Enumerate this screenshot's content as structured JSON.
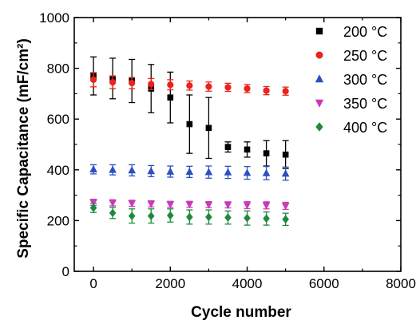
{
  "chart_data": {
    "type": "scatter",
    "xlabel": "Cycle number",
    "ylabel": "Specific Capacitance (mF/cm²)",
    "xlim": [
      -500,
      8000
    ],
    "ylim": [
      0,
      1000
    ],
    "xticks": [
      0,
      2000,
      4000,
      6000,
      8000
    ],
    "yticks": [
      0,
      200,
      400,
      600,
      800,
      1000
    ],
    "error_bars": true,
    "legend_position": "top-right",
    "series": [
      {
        "name": "200 °C",
        "marker": "square",
        "color": "#000000",
        "x": [
          0,
          500,
          1000,
          1500,
          2000,
          2500,
          3000,
          3500,
          4000,
          4500,
          5000
        ],
        "y": [
          770,
          760,
          750,
          720,
          685,
          580,
          565,
          490,
          480,
          465,
          460
        ],
        "err": [
          75,
          80,
          85,
          95,
          100,
          115,
          120,
          20,
          30,
          50,
          55
        ]
      },
      {
        "name": "250 °C",
        "marker": "circle",
        "color": "#e8241c",
        "x": [
          0,
          500,
          1000,
          1500,
          2000,
          2500,
          3000,
          3500,
          4000,
          4500,
          5000
        ],
        "y": [
          755,
          745,
          742,
          738,
          735,
          732,
          728,
          725,
          720,
          712,
          710
        ],
        "err": [
          28,
          25,
          22,
          22,
          20,
          18,
          18,
          16,
          16,
          16,
          16
        ]
      },
      {
        "name": "300 °C",
        "marker": "triangle-up",
        "color": "#2e4fc0",
        "x": [
          0,
          500,
          1000,
          1500,
          2000,
          2500,
          3000,
          3500,
          4000,
          4500,
          5000
        ],
        "y": [
          402,
          400,
          398,
          395,
          393,
          392,
          391,
          390,
          388,
          387,
          385
        ],
        "err": [
          18,
          20,
          22,
          22,
          22,
          22,
          24,
          24,
          25,
          26,
          26
        ]
      },
      {
        "name": "350 °C",
        "marker": "triangle-down",
        "color": "#c83ab8",
        "x": [
          0,
          500,
          1000,
          1500,
          2000,
          2500,
          3000,
          3500,
          4000,
          4500,
          5000
        ],
        "y": [
          272,
          270,
          268,
          266,
          264,
          264,
          263,
          262,
          261,
          260,
          258
        ],
        "err": [
          12,
          12,
          12,
          12,
          12,
          12,
          12,
          12,
          14,
          14,
          14
        ]
      },
      {
        "name": "400 °C",
        "marker": "diamond",
        "color": "#1e8a3c",
        "x": [
          0,
          500,
          1000,
          1500,
          2000,
          2500,
          3000,
          3500,
          4000,
          4500,
          5000
        ],
        "y": [
          250,
          230,
          218,
          218,
          220,
          214,
          214,
          212,
          210,
          208,
          205
        ],
        "err": [
          18,
          22,
          28,
          28,
          26,
          28,
          28,
          26,
          28,
          26,
          24
        ]
      }
    ]
  }
}
